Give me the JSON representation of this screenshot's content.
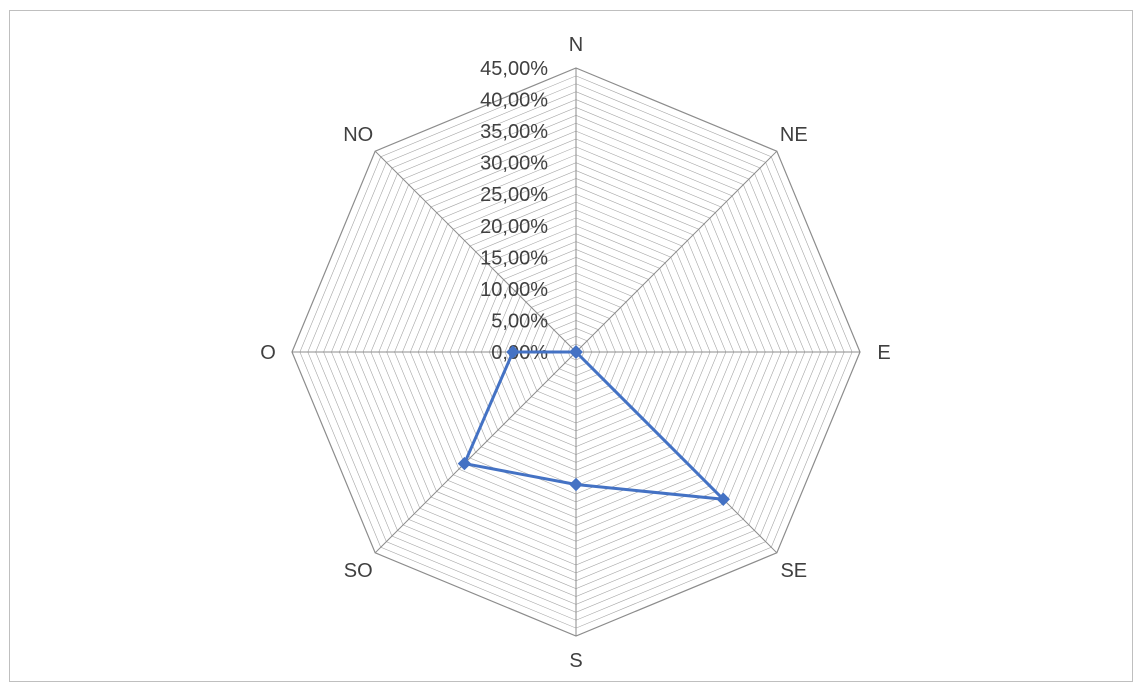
{
  "chart_data": {
    "type": "radar",
    "categories": [
      "N",
      "NE",
      "E",
      "SE",
      "S",
      "SO",
      "O",
      "NO"
    ],
    "series": [
      {
        "values": [
          0.0,
          0.0,
          0.0,
          0.33,
          0.21,
          0.25,
          0.1,
          0.0
        ]
      }
    ],
    "rlim": [
      0,
      0.45
    ],
    "major_step": 0.05,
    "minor_step": 0.0125,
    "tick_labels": [
      "0,00%",
      "5,00%",
      "10,00%",
      "15,00%",
      "20,00%",
      "25,00%",
      "30,00%",
      "35,00%",
      "40,00%",
      "45,00%"
    ],
    "grid": true,
    "legend": "none",
    "series_color": "#4472c4",
    "grid_color": "#a6a6a6"
  }
}
